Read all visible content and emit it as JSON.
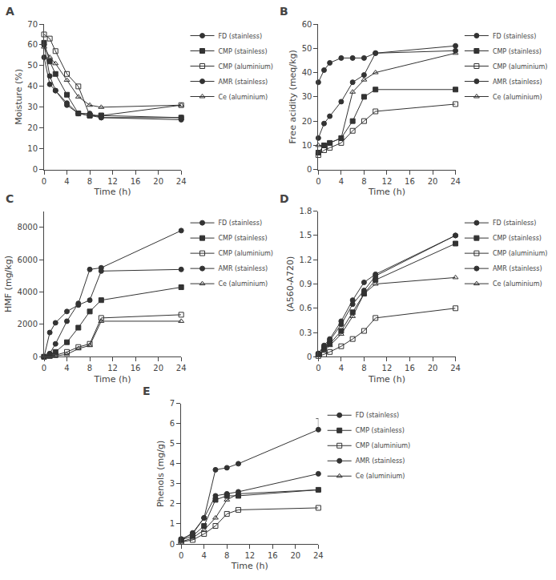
{
  "chart_data": [
    {
      "type": "line",
      "title": "A",
      "xlabel": "Time (h)",
      "ylabel": "Moisture (%)",
      "x": [
        0,
        1,
        2,
        4,
        6,
        8,
        10,
        24
      ],
      "xlim": [
        0,
        24
      ],
      "xticks": [
        0,
        4,
        8,
        12,
        16,
        20,
        24
      ],
      "ylim": [
        0,
        70
      ],
      "yticks": [
        0,
        10,
        20,
        30,
        40,
        50,
        60,
        70
      ],
      "grid": false,
      "legend": "right",
      "series": [
        {
          "name": "FD (stainless)",
          "color": "#333333",
          "marker": "circle",
          "values": [
            60,
            45,
            38,
            31,
            27,
            27,
            25,
            24
          ]
        },
        {
          "name": "CMP (stainless)",
          "color": "#333333",
          "marker": "square",
          "values": [
            61,
            52,
            46,
            36,
            27,
            26,
            26,
            25
          ]
        },
        {
          "name": "CMP (aluminium)",
          "color": "#333333",
          "marker": "square-open",
          "values": [
            65,
            63,
            57,
            46,
            40,
            26,
            26,
            31
          ]
        },
        {
          "name": "AMR (stainless)",
          "color": "#333333",
          "marker": "circle",
          "values": [
            54,
            41,
            38,
            32,
            27,
            26,
            25,
            25
          ]
        },
        {
          "name": "Ce (aluminium)",
          "color": "#333333",
          "marker": "triangle-up-open",
          "values": [
            59,
            54,
            51,
            43,
            35,
            31,
            30,
            31
          ]
        }
      ]
    },
    {
      "type": "line",
      "title": "B",
      "xlabel": "Time (h)",
      "ylabel": "Free acidity (meq/kg)",
      "x": [
        0,
        1,
        2,
        4,
        6,
        8,
        10,
        24
      ],
      "xlim": [
        0,
        24
      ],
      "xticks": [
        0,
        4,
        8,
        12,
        16,
        20,
        24
      ],
      "ylim": [
        0,
        60
      ],
      "yticks": [
        0,
        10,
        20,
        30,
        40,
        50,
        60
      ],
      "grid": false,
      "legend": "right",
      "series": [
        {
          "name": "FD (stainless)",
          "color": "#333333",
          "marker": "circle",
          "values": [
            13,
            19,
            22,
            28,
            36,
            39,
            48,
            49
          ]
        },
        {
          "name": "CMP (stainless)",
          "color": "#333333",
          "marker": "square",
          "values": [
            7,
            10,
            11,
            13,
            20,
            30,
            33,
            33
          ]
        },
        {
          "name": "CMP (aluminium)",
          "color": "#333333",
          "marker": "square-open",
          "values": [
            6,
            8,
            9,
            11,
            16,
            20,
            24,
            27
          ]
        },
        {
          "name": "AMR (stainless)",
          "color": "#333333",
          "marker": "circle",
          "values": [
            36,
            41,
            44,
            46,
            46,
            46,
            48,
            51
          ]
        },
        {
          "name": "Ce (aluminium)",
          "color": "#333333",
          "marker": "triangle-up-open",
          "values": [
            10,
            10,
            11,
            13,
            32,
            37,
            40,
            48
          ]
        }
      ]
    },
    {
      "type": "line",
      "title": "C",
      "xlabel": "Time (h)",
      "ylabel": "HMF (mg/kg)",
      "x": [
        0,
        1,
        2,
        4,
        6,
        8,
        10,
        24
      ],
      "xlim": [
        0,
        24
      ],
      "xticks": [
        0,
        4,
        8,
        12,
        16,
        20,
        24
      ],
      "ylim": [
        0,
        9000
      ],
      "yticks": [
        0,
        2000,
        4000,
        6000,
        8000
      ],
      "grid": false,
      "legend": "right",
      "series": [
        {
          "name": "FD (stainless)",
          "color": "#333333",
          "marker": "circle",
          "values": [
            0,
            200,
            800,
            2200,
            3300,
            5400,
            5500,
            7800
          ]
        },
        {
          "name": "CMP (stainless)",
          "color": "#333333",
          "marker": "square",
          "values": [
            0,
            100,
            300,
            900,
            1800,
            2800,
            3500,
            4300
          ]
        },
        {
          "name": "CMP (aluminium)",
          "color": "#333333",
          "marker": "square-open",
          "values": [
            0,
            50,
            100,
            300,
            600,
            800,
            2400,
            2600
          ]
        },
        {
          "name": "AMR (stainless)",
          "color": "#333333",
          "marker": "circle",
          "values": [
            0,
            1500,
            2100,
            2800,
            3200,
            3500,
            5300,
            5400
          ]
        },
        {
          "name": "Ce (aluminium)",
          "color": "#333333",
          "marker": "triangle-up-open",
          "values": [
            0,
            0,
            50,
            150,
            500,
            700,
            2200,
            2200
          ]
        }
      ]
    },
    {
      "type": "line",
      "title": "D",
      "xlabel": "Time (h)",
      "ylabel": "(A560-A720)",
      "x": [
        0,
        1,
        2,
        4,
        6,
        8,
        10,
        24
      ],
      "xlim": [
        0,
        24
      ],
      "xticks": [
        0,
        4,
        8,
        12,
        16,
        20,
        24
      ],
      "ylim": [
        0,
        1.8
      ],
      "yticks": [
        0,
        0.3,
        0.6,
        0.9,
        1.2,
        1.5,
        1.8
      ],
      "grid": false,
      "legend": "right",
      "series": [
        {
          "name": "FD (stainless)",
          "color": "#333333",
          "marker": "circle",
          "values": [
            0.04,
            0.12,
            0.2,
            0.4,
            0.65,
            0.82,
            1.0,
            1.5
          ]
        },
        {
          "name": "CMP (stainless)",
          "color": "#333333",
          "marker": "square",
          "values": [
            0.03,
            0.1,
            0.16,
            0.32,
            0.55,
            0.78,
            0.95,
            1.4
          ]
        },
        {
          "name": "CMP (aluminium)",
          "color": "#333333",
          "marker": "square-open",
          "values": [
            0.01,
            0.03,
            0.06,
            0.13,
            0.22,
            0.32,
            0.48,
            0.6
          ]
        },
        {
          "name": "AMR (stainless)",
          "color": "#333333",
          "marker": "circle",
          "values": [
            0.04,
            0.14,
            0.22,
            0.44,
            0.7,
            0.92,
            1.02,
            1.5
          ]
        },
        {
          "name": "Ce (aluminium)",
          "color": "#333333",
          "marker": "triangle-up-open",
          "values": [
            0.02,
            0.07,
            0.14,
            0.28,
            0.5,
            0.78,
            0.9,
            0.98
          ]
        }
      ]
    },
    {
      "type": "line",
      "title": "E",
      "xlabel": "Time (h)",
      "ylabel": "Phenols (mg/g)",
      "x": [
        0,
        2,
        4,
        6,
        8,
        10,
        24
      ],
      "xlim": [
        0,
        24
      ],
      "xticks": [
        0,
        4,
        8,
        12,
        16,
        20,
        24
      ],
      "ylim": [
        0,
        7
      ],
      "yticks": [
        0,
        1,
        2,
        3,
        4,
        5,
        6,
        7
      ],
      "grid": false,
      "legend": "right",
      "series": [
        {
          "name": "FD (stainless)",
          "color": "#333333",
          "marker": "circle",
          "values": [
            0.25,
            0.5,
            1.3,
            3.7,
            3.8,
            4.0,
            5.7
          ],
          "error_plus": [
            0,
            0,
            0,
            0,
            0,
            0,
            0.55
          ],
          "error_minus": [
            0,
            0,
            0,
            0,
            0,
            0,
            0
          ]
        },
        {
          "name": "CMP (stainless)",
          "color": "#333333",
          "marker": "square",
          "values": [
            0.2,
            0.4,
            0.9,
            2.2,
            2.4,
            2.4,
            2.7
          ]
        },
        {
          "name": "CMP (aluminium)",
          "color": "#333333",
          "marker": "square-open",
          "values": [
            0.1,
            0.2,
            0.5,
            0.9,
            1.5,
            1.7,
            1.8
          ]
        },
        {
          "name": "AMR (stainless)",
          "color": "#333333",
          "marker": "circle",
          "values": [
            0.2,
            0.55,
            1.3,
            2.4,
            2.5,
            2.6,
            3.5
          ]
        },
        {
          "name": "Ce (aluminium)",
          "color": "#333333",
          "marker": "triangle-up-open",
          "values": [
            0.1,
            0.3,
            0.7,
            1.3,
            2.2,
            2.5,
            2.7
          ]
        }
      ]
    }
  ]
}
